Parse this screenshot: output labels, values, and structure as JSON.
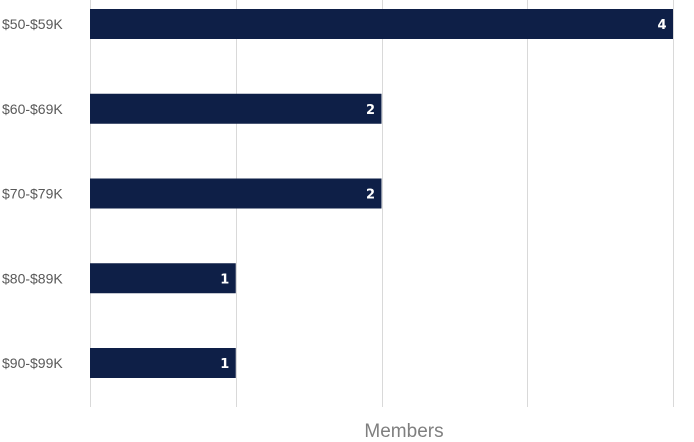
{
  "chart_data": {
    "type": "bar",
    "orientation": "horizontal",
    "categories": [
      "$50-$59K",
      "$60-$69K",
      "$70-$79K",
      "$80-$89K",
      "$90-$99K"
    ],
    "values": [
      4,
      2,
      2,
      1,
      1
    ],
    "xlabel": "Members",
    "xlim": [
      0,
      4
    ],
    "x_tick_step": 1,
    "grid": true,
    "bar_color": "#0e1f47",
    "grid_color": "#d9d9d9",
    "data_label_color": "#ffffff"
  }
}
